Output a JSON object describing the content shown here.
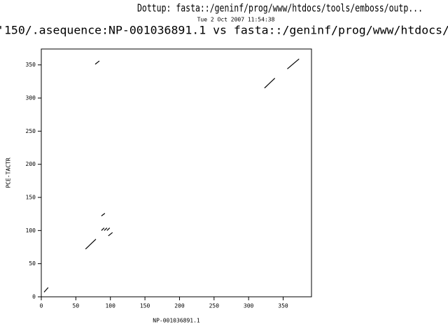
{
  "chart_data": {
    "type": "dotplot",
    "title": "Dottup: fasta::/geninf/prog/www/htdocs/tools/emboss/outp...",
    "date": "Tue  2 Oct 2007 11:54:38",
    "subtitle": "'150/.asequence:NP-001036891.1 vs fasta::/geninf/prog/www/htdocs/",
    "x_label": "NP-001036891.1",
    "y_label": "PCE-TACTR",
    "xlim": [
      0,
      391
    ],
    "ylim": [
      0,
      374
    ],
    "xticks": [
      0,
      50,
      100,
      150,
      200,
      250,
      300,
      350
    ],
    "yticks": [
      0,
      50,
      100,
      150,
      200,
      250,
      300,
      350
    ],
    "color": "#000000",
    "series": [
      {
        "x": [
          4,
          10
        ],
        "values": [
          7,
          14
        ]
      },
      {
        "x": [
          64,
          79
        ],
        "values": [
          72,
          87
        ]
      },
      {
        "x": [
          87,
          91
        ],
        "values": [
          100,
          104
        ]
      },
      {
        "x": [
          91,
          95
        ],
        "values": [
          100,
          104
        ]
      },
      {
        "x": [
          95,
          99
        ],
        "values": [
          100,
          104
        ]
      },
      {
        "x": [
          97,
          103
        ],
        "values": [
          92,
          97
        ]
      },
      {
        "x": [
          87,
          92
        ],
        "values": [
          122,
          126
        ]
      },
      {
        "x": [
          78,
          84
        ],
        "values": [
          351,
          356
        ]
      },
      {
        "x": [
          323,
          338
        ],
        "values": [
          315,
          330
        ]
      },
      {
        "x": [
          356,
          373
        ],
        "values": [
          344,
          359
        ]
      }
    ]
  }
}
